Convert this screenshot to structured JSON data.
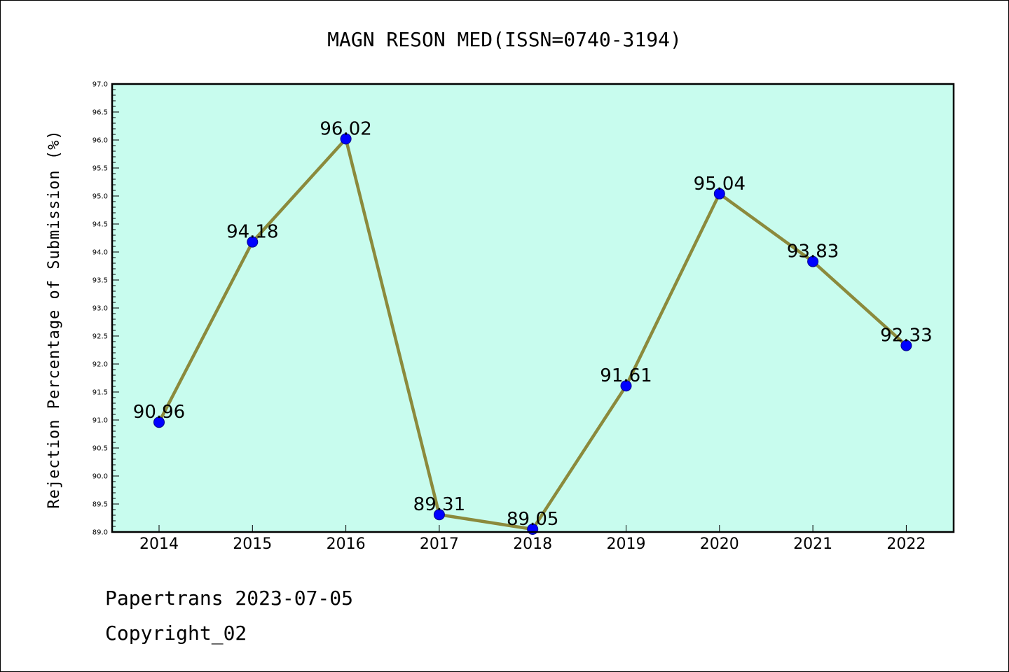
{
  "chart_data": {
    "type": "line",
    "title": "MAGN RESON MED(ISSN=0740-3194)",
    "ylabel": "Rejection Percentage of Submission (%)",
    "xlabel": "",
    "categories": [
      "2014",
      "2015",
      "2016",
      "2017",
      "2018",
      "2019",
      "2020",
      "2021",
      "2022"
    ],
    "series": [
      {
        "values": [
          90.96,
          94.18,
          96.02,
          89.31,
          89.05,
          91.61,
          95.04,
          93.83,
          92.33
        ],
        "labels": [
          "90.96",
          "94.18",
          "96.02",
          "89.31",
          "89.05",
          "91.61",
          "95.04",
          "93.83",
          "92.33"
        ]
      }
    ],
    "ylim": [
      89.0,
      97.0
    ],
    "ytick_step": 0.5,
    "ytick_labels": [
      "89.0",
      "89.5",
      "90.0",
      "90.5",
      "91.0",
      "91.5",
      "92.0",
      "92.5",
      "93.0",
      "93.5",
      "94.0",
      "94.5",
      "95.0",
      "95.5",
      "96.0",
      "96.5",
      "97.0"
    ],
    "grid": false,
    "legend": "none",
    "colors": {
      "plot_background": "#c8fcee",
      "line": "#8b8a3c",
      "marker": "#0000ff",
      "marker_edge": "#00008b"
    }
  },
  "footer": {
    "line1": "Papertrans 2023-07-05",
    "line2": "Copyright_02"
  }
}
